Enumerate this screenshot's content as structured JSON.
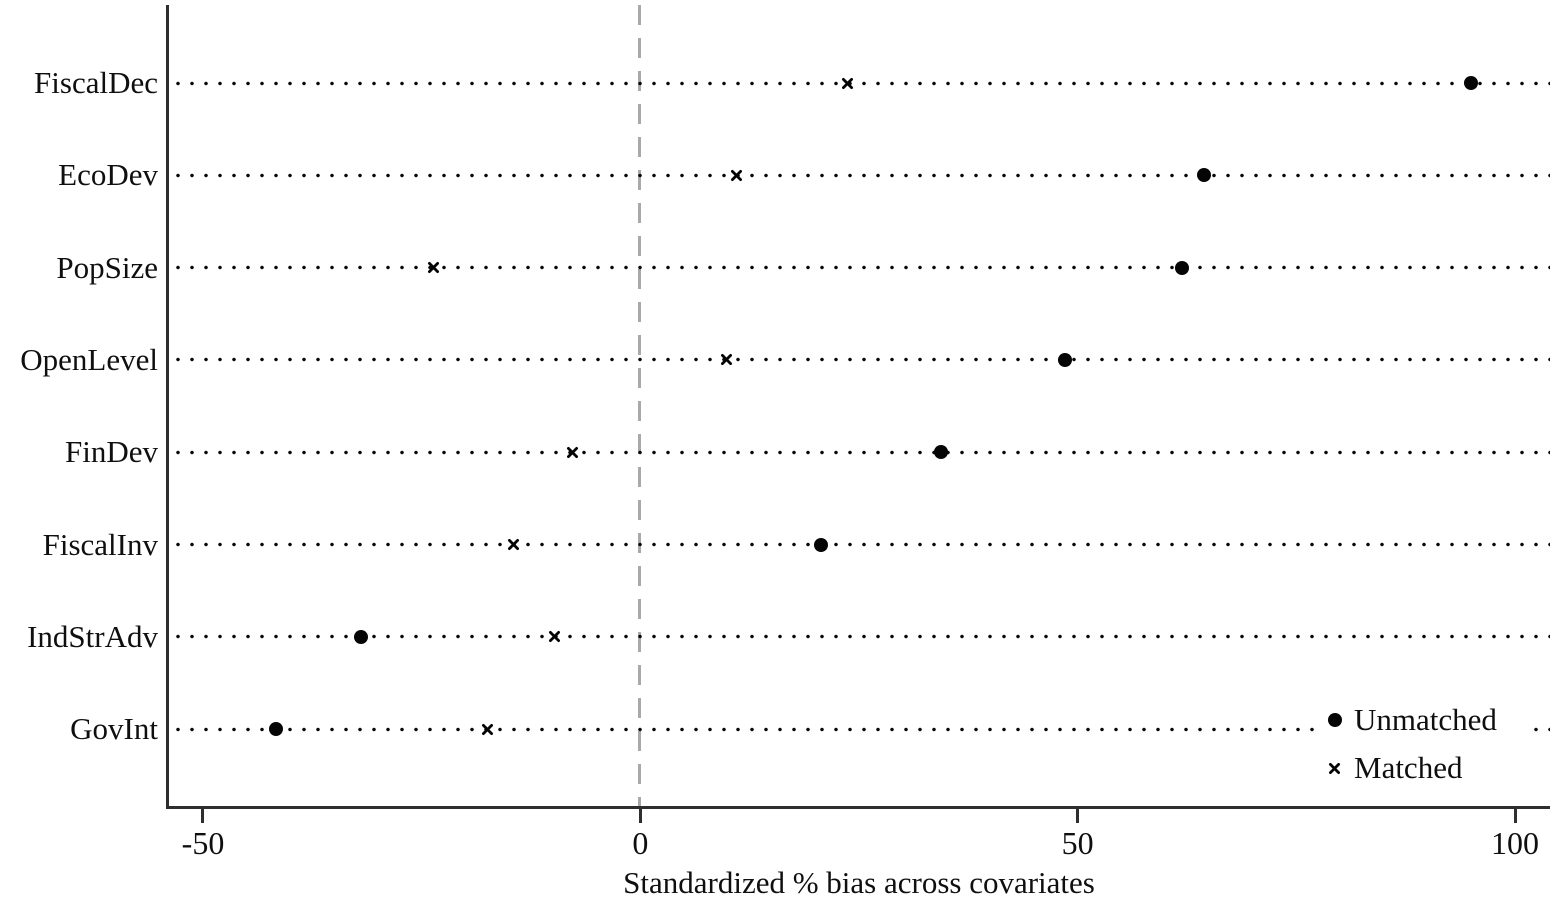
{
  "chart_data": {
    "type": "scatter",
    "variant": "horizontal-dot-plot (covariate balance plot)",
    "title": "",
    "xlabel": "Standardized % bias across covariates",
    "ylabel": "",
    "categories": [
      "FiscalDec",
      "EcoDev",
      "PopSize",
      "OpenLevel",
      "FinDev",
      "FiscalInv",
      "IndStrAdv",
      "GovInt"
    ],
    "series": [
      {
        "name": "Unmatched",
        "marker": "filled-circle",
        "values": [
          95.0,
          64.4,
          61.9,
          48.5,
          34.4,
          20.6,
          -31.9,
          -41.6
        ]
      },
      {
        "name": "Matched",
        "marker": "x-cross",
        "values": [
          23.7,
          11.0,
          -23.7,
          9.8,
          -7.7,
          -14.5,
          -9.8,
          -17.5
        ]
      }
    ],
    "x_ticks": [
      -50,
      0,
      50,
      100
    ],
    "x_tick_labels": [
      "-50",
      "0",
      "50",
      "100"
    ],
    "xlim": [
      -54,
      104
    ],
    "reference_line_x": 0,
    "grid": "dotted horizontal leader line per category",
    "legend_position": "inside bottom-right",
    "colors": {
      "marker": "#050505",
      "text": "#0f0f0f",
      "axis": "#2e2e2e",
      "reference_line": "#a9a9a9",
      "background": "#ffffff"
    }
  }
}
